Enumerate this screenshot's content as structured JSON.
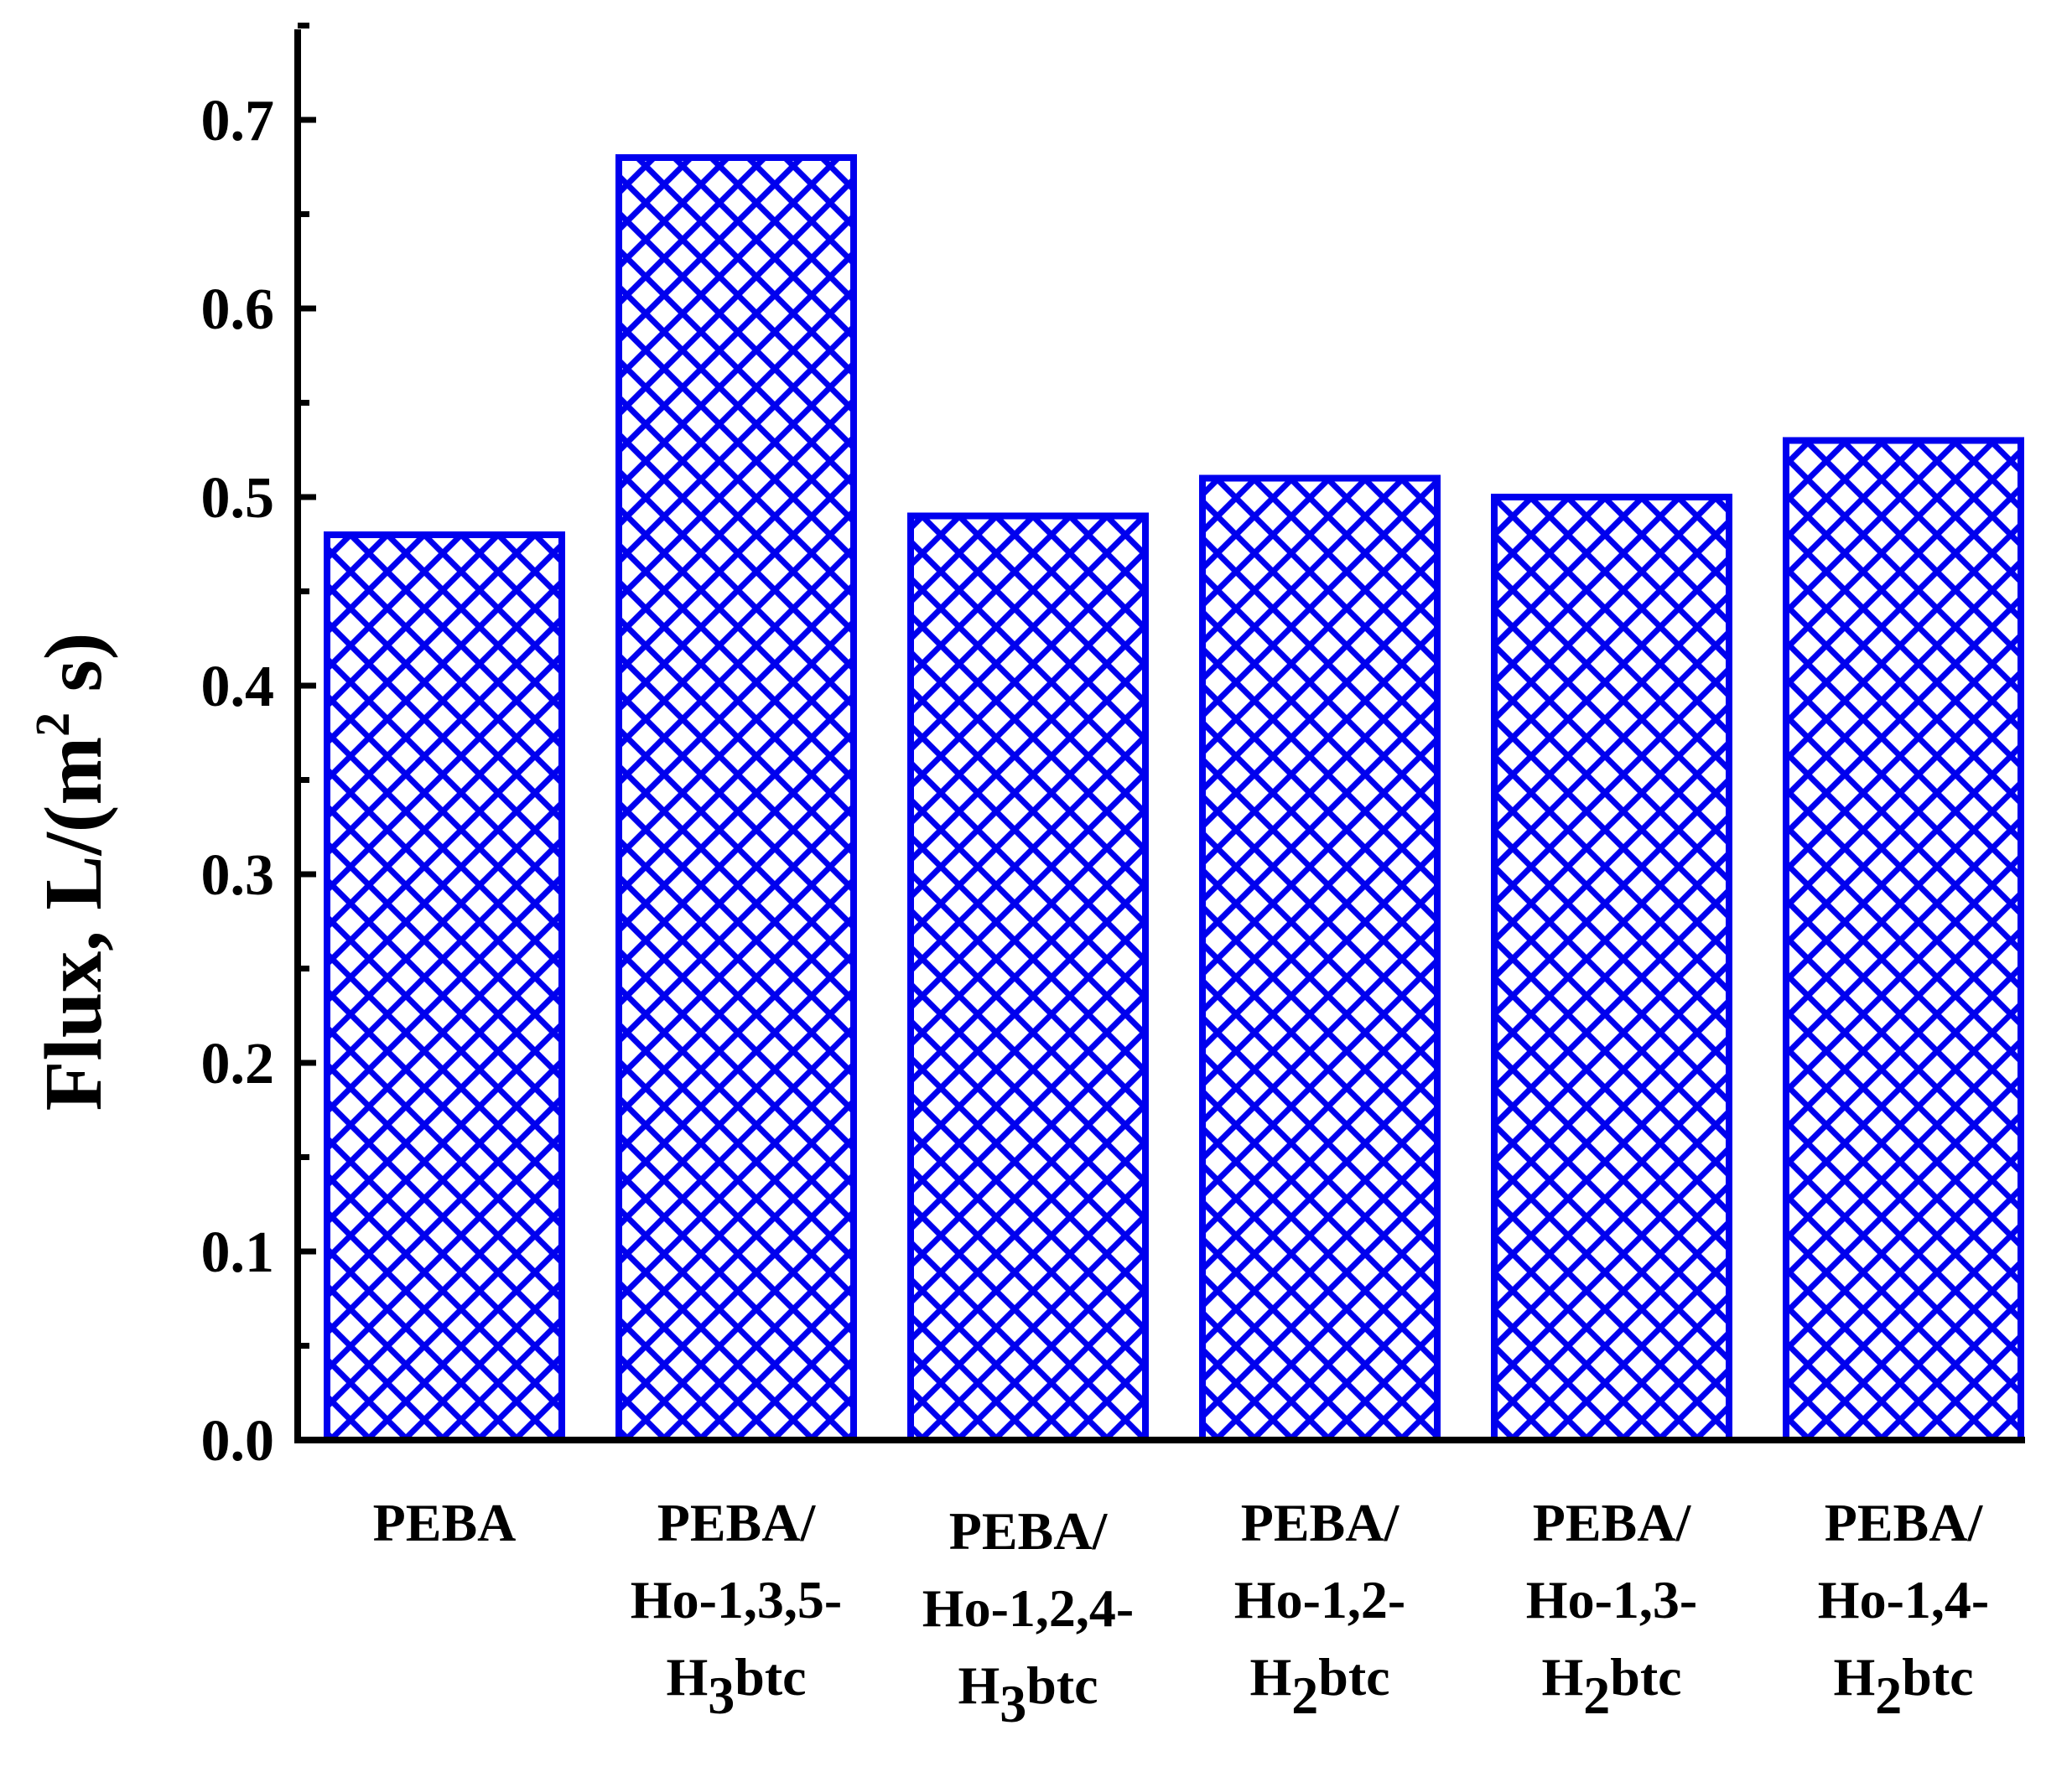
{
  "chart_data": {
    "type": "bar",
    "categories": [
      [
        "PEBA"
      ],
      [
        "PEBA/",
        "Ho-1,3,5-",
        "H3btc"
      ],
      [
        "PEBA/",
        "Ho-1,2,4-",
        "H3btc"
      ],
      [
        "PEBA/",
        "Ho-1,2-",
        "H2btc"
      ],
      [
        "PEBA/",
        "Ho-1,3-",
        "H2btc"
      ],
      [
        "PEBA/",
        "Ho-1,4-",
        "H2btc"
      ]
    ],
    "values": [
      0.48,
      0.68,
      0.49,
      0.51,
      0.5,
      0.53
    ],
    "ylabel": {
      "main": "Flux, L/(m",
      "sup": "2",
      "tail": " s)"
    },
    "xlabel": "",
    "ylim": [
      0.0,
      0.75
    ],
    "yticks": [
      "0.0",
      "0.1",
      "0.2",
      "0.3",
      "0.4",
      "0.5",
      "0.6",
      "0.7"
    ],
    "ytick_values": [
      0.0,
      0.1,
      0.2,
      0.3,
      0.4,
      0.5,
      0.6,
      0.7
    ],
    "bar_color": "#0000ee",
    "bar_fill": "crosshatch",
    "grid": false,
    "legend": "none"
  }
}
